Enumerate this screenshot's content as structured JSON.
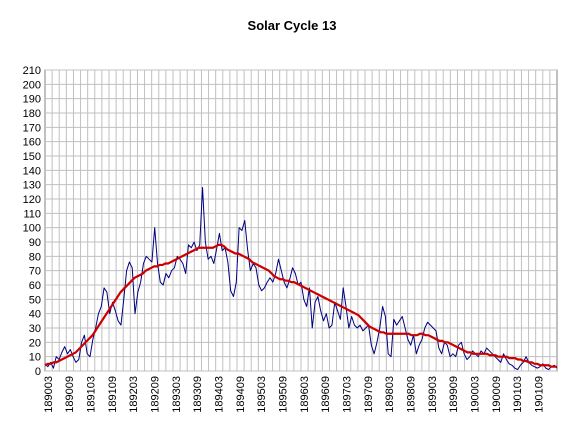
{
  "chart_data": {
    "type": "line",
    "title": "Solar Cycle 13",
    "xlabel": "",
    "ylabel": "",
    "ylim": [
      0,
      210
    ],
    "yticks": [
      0,
      10,
      20,
      30,
      40,
      50,
      60,
      70,
      80,
      90,
      100,
      110,
      120,
      130,
      140,
      150,
      160,
      170,
      180,
      190,
      200,
      210
    ],
    "xtick_labels": [
      "189003",
      "189009",
      "189103",
      "189109",
      "189203",
      "189209",
      "189303",
      "189309",
      "189403",
      "189409",
      "189503",
      "189509",
      "189603",
      "189609",
      "189703",
      "189709",
      "189803",
      "189809",
      "189903",
      "189909",
      "190003",
      "190009",
      "190103",
      "190109"
    ],
    "grid": true,
    "legend": "none",
    "series": [
      {
        "color": "#000080",
        "values": [
          5,
          3,
          6,
          2,
          10,
          8,
          13,
          17,
          12,
          15,
          10,
          6,
          8,
          20,
          25,
          12,
          10,
          22,
          30,
          40,
          45,
          58,
          55,
          40,
          48,
          42,
          35,
          32,
          50,
          70,
          76,
          72,
          40,
          55,
          62,
          75,
          80,
          78,
          76,
          100,
          75,
          62,
          60,
          68,
          65,
          70,
          72,
          80,
          78,
          75,
          68,
          88,
          86,
          90,
          84,
          88,
          128,
          90,
          78,
          80,
          75,
          85,
          96,
          84,
          86,
          76,
          56,
          52,
          62,
          100,
          98,
          105,
          85,
          70,
          75,
          72,
          60,
          56,
          58,
          62,
          65,
          62,
          68,
          78,
          70,
          62,
          58,
          64,
          72,
          68,
          60,
          62,
          50,
          45,
          58,
          30,
          48,
          52,
          42,
          35,
          40,
          30,
          32,
          48,
          42,
          36,
          58,
          45,
          30,
          38,
          32,
          30,
          32,
          28,
          30,
          32,
          18,
          12,
          20,
          30,
          45,
          38,
          12,
          10,
          36,
          32,
          35,
          38,
          30,
          22,
          18,
          25,
          12,
          18,
          22,
          30,
          34,
          32,
          30,
          28,
          16,
          12,
          20,
          18,
          10,
          12,
          10,
          18,
          20,
          12,
          8,
          10,
          14,
          12,
          10,
          14,
          12,
          16,
          14,
          12,
          10,
          8,
          6,
          12,
          8,
          5,
          4,
          2,
          1,
          4,
          6,
          10,
          6,
          4,
          3,
          2,
          3,
          5,
          2,
          1,
          3,
          4,
          2
        ]
      },
      {
        "color": "#cc0000",
        "values": [
          4,
          5,
          5,
          6,
          6,
          7,
          8,
          9,
          10,
          11,
          12,
          13,
          15,
          17,
          19,
          21,
          23,
          25,
          28,
          31,
          34,
          37,
          40,
          43,
          46,
          49,
          52,
          55,
          57,
          59,
          61,
          63,
          65,
          66,
          67,
          68,
          70,
          71,
          72,
          73,
          73,
          74,
          74,
          75,
          75,
          76,
          77,
          78,
          79,
          80,
          81,
          82,
          83,
          84,
          85,
          86,
          86,
          86,
          86,
          86,
          86,
          87,
          88,
          88,
          87,
          85,
          84,
          83,
          82,
          82,
          81,
          80,
          79,
          78,
          76,
          75,
          74,
          73,
          72,
          71,
          70,
          68,
          66,
          65,
          64,
          64,
          63,
          63,
          62,
          62,
          61,
          60,
          59,
          58,
          57,
          56,
          55,
          54,
          53,
          52,
          51,
          50,
          49,
          48,
          47,
          46,
          45,
          44,
          43,
          42,
          41,
          40,
          39,
          37,
          35,
          33,
          31,
          30,
          29,
          28,
          27,
          27,
          26,
          26,
          26,
          26,
          26,
          26,
          26,
          26,
          26,
          25,
          25,
          25,
          26,
          26,
          25,
          25,
          24,
          23,
          22,
          21,
          21,
          20,
          20,
          19,
          18,
          17,
          16,
          15,
          14,
          13,
          13,
          12,
          12,
          12,
          12,
          12,
          12,
          11,
          11,
          11,
          10,
          10,
          10,
          10,
          9,
          9,
          9,
          8,
          8,
          7,
          7,
          6,
          6,
          5,
          5,
          4,
          4,
          4,
          4,
          3,
          3,
          3
        ]
      }
    ]
  }
}
